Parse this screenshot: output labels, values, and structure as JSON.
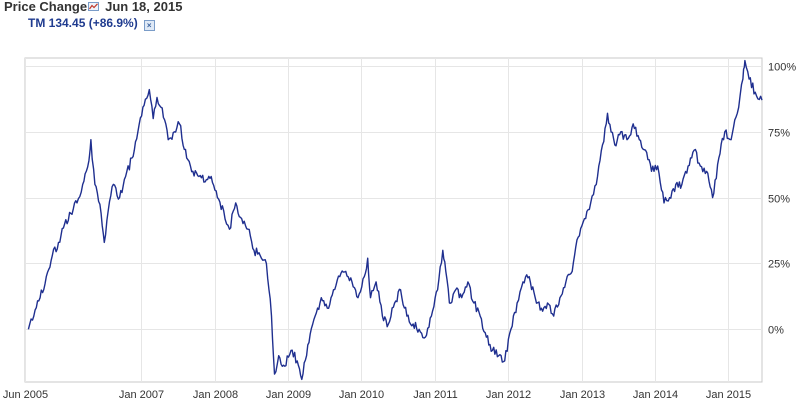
{
  "header": {
    "title": "Price Change",
    "date": "Jun 18, 2015",
    "chart_icon": "line-chart-icon",
    "legend": "TM 134.45 (+86.9%)",
    "legend_close_icon": "close-icon"
  },
  "colors": {
    "series": "#1f2f8f",
    "grid": "#e6e6e6",
    "axis": "#c8c8c8",
    "text": "#333333"
  },
  "chart_data": {
    "type": "line",
    "title": "Price Change",
    "xlabel": "",
    "ylabel": "",
    "x_range": [
      "2005-06-18",
      "2015-06-18"
    ],
    "ylim": [
      -20,
      103
    ],
    "grid": true,
    "y_axis_position": "right",
    "y_ticks": [
      {
        "value": 0,
        "label": "0%"
      },
      {
        "value": 25,
        "label": "25%"
      },
      {
        "value": 50,
        "label": "50%"
      },
      {
        "value": 75,
        "label": "75%"
      },
      {
        "value": 100,
        "label": "100%"
      }
    ],
    "x_ticks": [
      {
        "value": "2005-06-01",
        "label": "Jun 2005"
      },
      {
        "value": "2007-01-01",
        "label": "Jan 2007"
      },
      {
        "value": "2008-01-01",
        "label": "Jan 2008"
      },
      {
        "value": "2009-01-01",
        "label": "Jan 2009"
      },
      {
        "value": "2010-01-01",
        "label": "Jan 2010"
      },
      {
        "value": "2011-01-01",
        "label": "Jan 2011"
      },
      {
        "value": "2012-01-01",
        "label": "Jan 2012"
      },
      {
        "value": "2013-01-01",
        "label": "Jan 2013"
      },
      {
        "value": "2014-01-01",
        "label": "Jan 2014"
      },
      {
        "value": "2015-01-01",
        "label": "Jan 2015"
      }
    ],
    "series": [
      {
        "name": "TM",
        "points": [
          [
            "2005-06-18",
            0
          ],
          [
            "2005-07-15",
            5
          ],
          [
            "2005-08-15",
            12
          ],
          [
            "2005-09-15",
            20
          ],
          [
            "2005-10-15",
            28
          ],
          [
            "2005-11-15",
            33
          ],
          [
            "2005-12-15",
            40
          ],
          [
            "2006-01-15",
            44
          ],
          [
            "2006-02-15",
            48
          ],
          [
            "2006-03-15",
            55
          ],
          [
            "2006-04-15",
            64
          ],
          [
            "2006-04-25",
            72
          ],
          [
            "2006-05-15",
            55
          ],
          [
            "2006-06-15",
            44
          ],
          [
            "2006-07-01",
            33
          ],
          [
            "2006-07-20",
            45
          ],
          [
            "2006-08-15",
            55
          ],
          [
            "2006-09-15",
            50
          ],
          [
            "2006-10-15",
            58
          ],
          [
            "2006-11-15",
            65
          ],
          [
            "2006-12-15",
            75
          ],
          [
            "2007-01-15",
            85
          ],
          [
            "2007-02-10",
            91
          ],
          [
            "2007-03-01",
            80
          ],
          [
            "2007-03-20",
            88
          ],
          [
            "2007-04-15",
            84
          ],
          [
            "2007-05-15",
            72
          ],
          [
            "2007-06-15",
            75
          ],
          [
            "2007-07-10",
            78
          ],
          [
            "2007-08-15",
            65
          ],
          [
            "2007-09-15",
            60
          ],
          [
            "2007-10-15",
            58
          ],
          [
            "2007-11-15",
            56
          ],
          [
            "2007-12-15",
            58
          ],
          [
            "2008-01-15",
            50
          ],
          [
            "2008-02-15",
            45
          ],
          [
            "2008-03-15",
            38
          ],
          [
            "2008-04-15",
            48
          ],
          [
            "2008-05-15",
            42
          ],
          [
            "2008-06-15",
            38
          ],
          [
            "2008-07-15",
            30
          ],
          [
            "2008-08-15",
            28
          ],
          [
            "2008-09-15",
            25
          ],
          [
            "2008-10-10",
            5
          ],
          [
            "2008-10-25",
            -17
          ],
          [
            "2008-11-15",
            -10
          ],
          [
            "2008-12-15",
            -14
          ],
          [
            "2009-01-15",
            -8
          ],
          [
            "2009-02-15",
            -12
          ],
          [
            "2009-03-10",
            -19
          ],
          [
            "2009-04-15",
            -5
          ],
          [
            "2009-05-15",
            5
          ],
          [
            "2009-06-15",
            12
          ],
          [
            "2009-07-15",
            8
          ],
          [
            "2009-08-15",
            15
          ],
          [
            "2009-09-15",
            20
          ],
          [
            "2009-10-15",
            22
          ],
          [
            "2009-11-15",
            18
          ],
          [
            "2009-12-15",
            12
          ],
          [
            "2010-01-15",
            20
          ],
          [
            "2010-02-01",
            27
          ],
          [
            "2010-02-15",
            12
          ],
          [
            "2010-03-15",
            18
          ],
          [
            "2010-04-15",
            5
          ],
          [
            "2010-05-15",
            2
          ],
          [
            "2010-06-15",
            10
          ],
          [
            "2010-07-15",
            15
          ],
          [
            "2010-08-15",
            5
          ],
          [
            "2010-09-15",
            2
          ],
          [
            "2010-10-15",
            0
          ],
          [
            "2010-11-15",
            -3
          ],
          [
            "2010-12-15",
            5
          ],
          [
            "2011-01-15",
            15
          ],
          [
            "2011-02-10",
            30
          ],
          [
            "2011-02-25",
            22
          ],
          [
            "2011-03-15",
            10
          ],
          [
            "2011-04-15",
            15
          ],
          [
            "2011-05-15",
            12
          ],
          [
            "2011-06-15",
            18
          ],
          [
            "2011-07-15",
            10
          ],
          [
            "2011-08-15",
            5
          ],
          [
            "2011-09-15",
            -3
          ],
          [
            "2011-10-15",
            -8
          ],
          [
            "2011-11-15",
            -10
          ],
          [
            "2011-12-15",
            -12
          ],
          [
            "2012-01-15",
            0
          ],
          [
            "2012-02-15",
            10
          ],
          [
            "2012-03-15",
            18
          ],
          [
            "2012-04-15",
            20
          ],
          [
            "2012-05-15",
            12
          ],
          [
            "2012-06-15",
            8
          ],
          [
            "2012-07-15",
            10
          ],
          [
            "2012-08-15",
            5
          ],
          [
            "2012-09-15",
            12
          ],
          [
            "2012-10-15",
            18
          ],
          [
            "2012-11-15",
            22
          ],
          [
            "2012-12-15",
            35
          ],
          [
            "2013-01-15",
            42
          ],
          [
            "2013-02-15",
            48
          ],
          [
            "2013-03-15",
            55
          ],
          [
            "2013-04-15",
            70
          ],
          [
            "2013-05-10",
            82
          ],
          [
            "2013-06-15",
            70
          ],
          [
            "2013-07-15",
            75
          ],
          [
            "2013-08-15",
            72
          ],
          [
            "2013-09-15",
            78
          ],
          [
            "2013-10-15",
            72
          ],
          [
            "2013-11-15",
            68
          ],
          [
            "2013-12-15",
            60
          ],
          [
            "2014-01-15",
            62
          ],
          [
            "2014-02-15",
            48
          ],
          [
            "2014-03-15",
            50
          ],
          [
            "2014-04-15",
            55
          ],
          [
            "2014-05-15",
            55
          ],
          [
            "2014-06-15",
            62
          ],
          [
            "2014-07-15",
            68
          ],
          [
            "2014-08-15",
            62
          ],
          [
            "2014-09-15",
            60
          ],
          [
            "2014-10-15",
            50
          ],
          [
            "2014-11-15",
            65
          ],
          [
            "2014-12-15",
            75
          ],
          [
            "2015-01-15",
            72
          ],
          [
            "2015-02-15",
            82
          ],
          [
            "2015-03-15",
            95
          ],
          [
            "2015-03-25",
            102
          ],
          [
            "2015-04-15",
            95
          ],
          [
            "2015-05-15",
            90
          ],
          [
            "2015-06-18",
            87
          ]
        ]
      }
    ]
  }
}
